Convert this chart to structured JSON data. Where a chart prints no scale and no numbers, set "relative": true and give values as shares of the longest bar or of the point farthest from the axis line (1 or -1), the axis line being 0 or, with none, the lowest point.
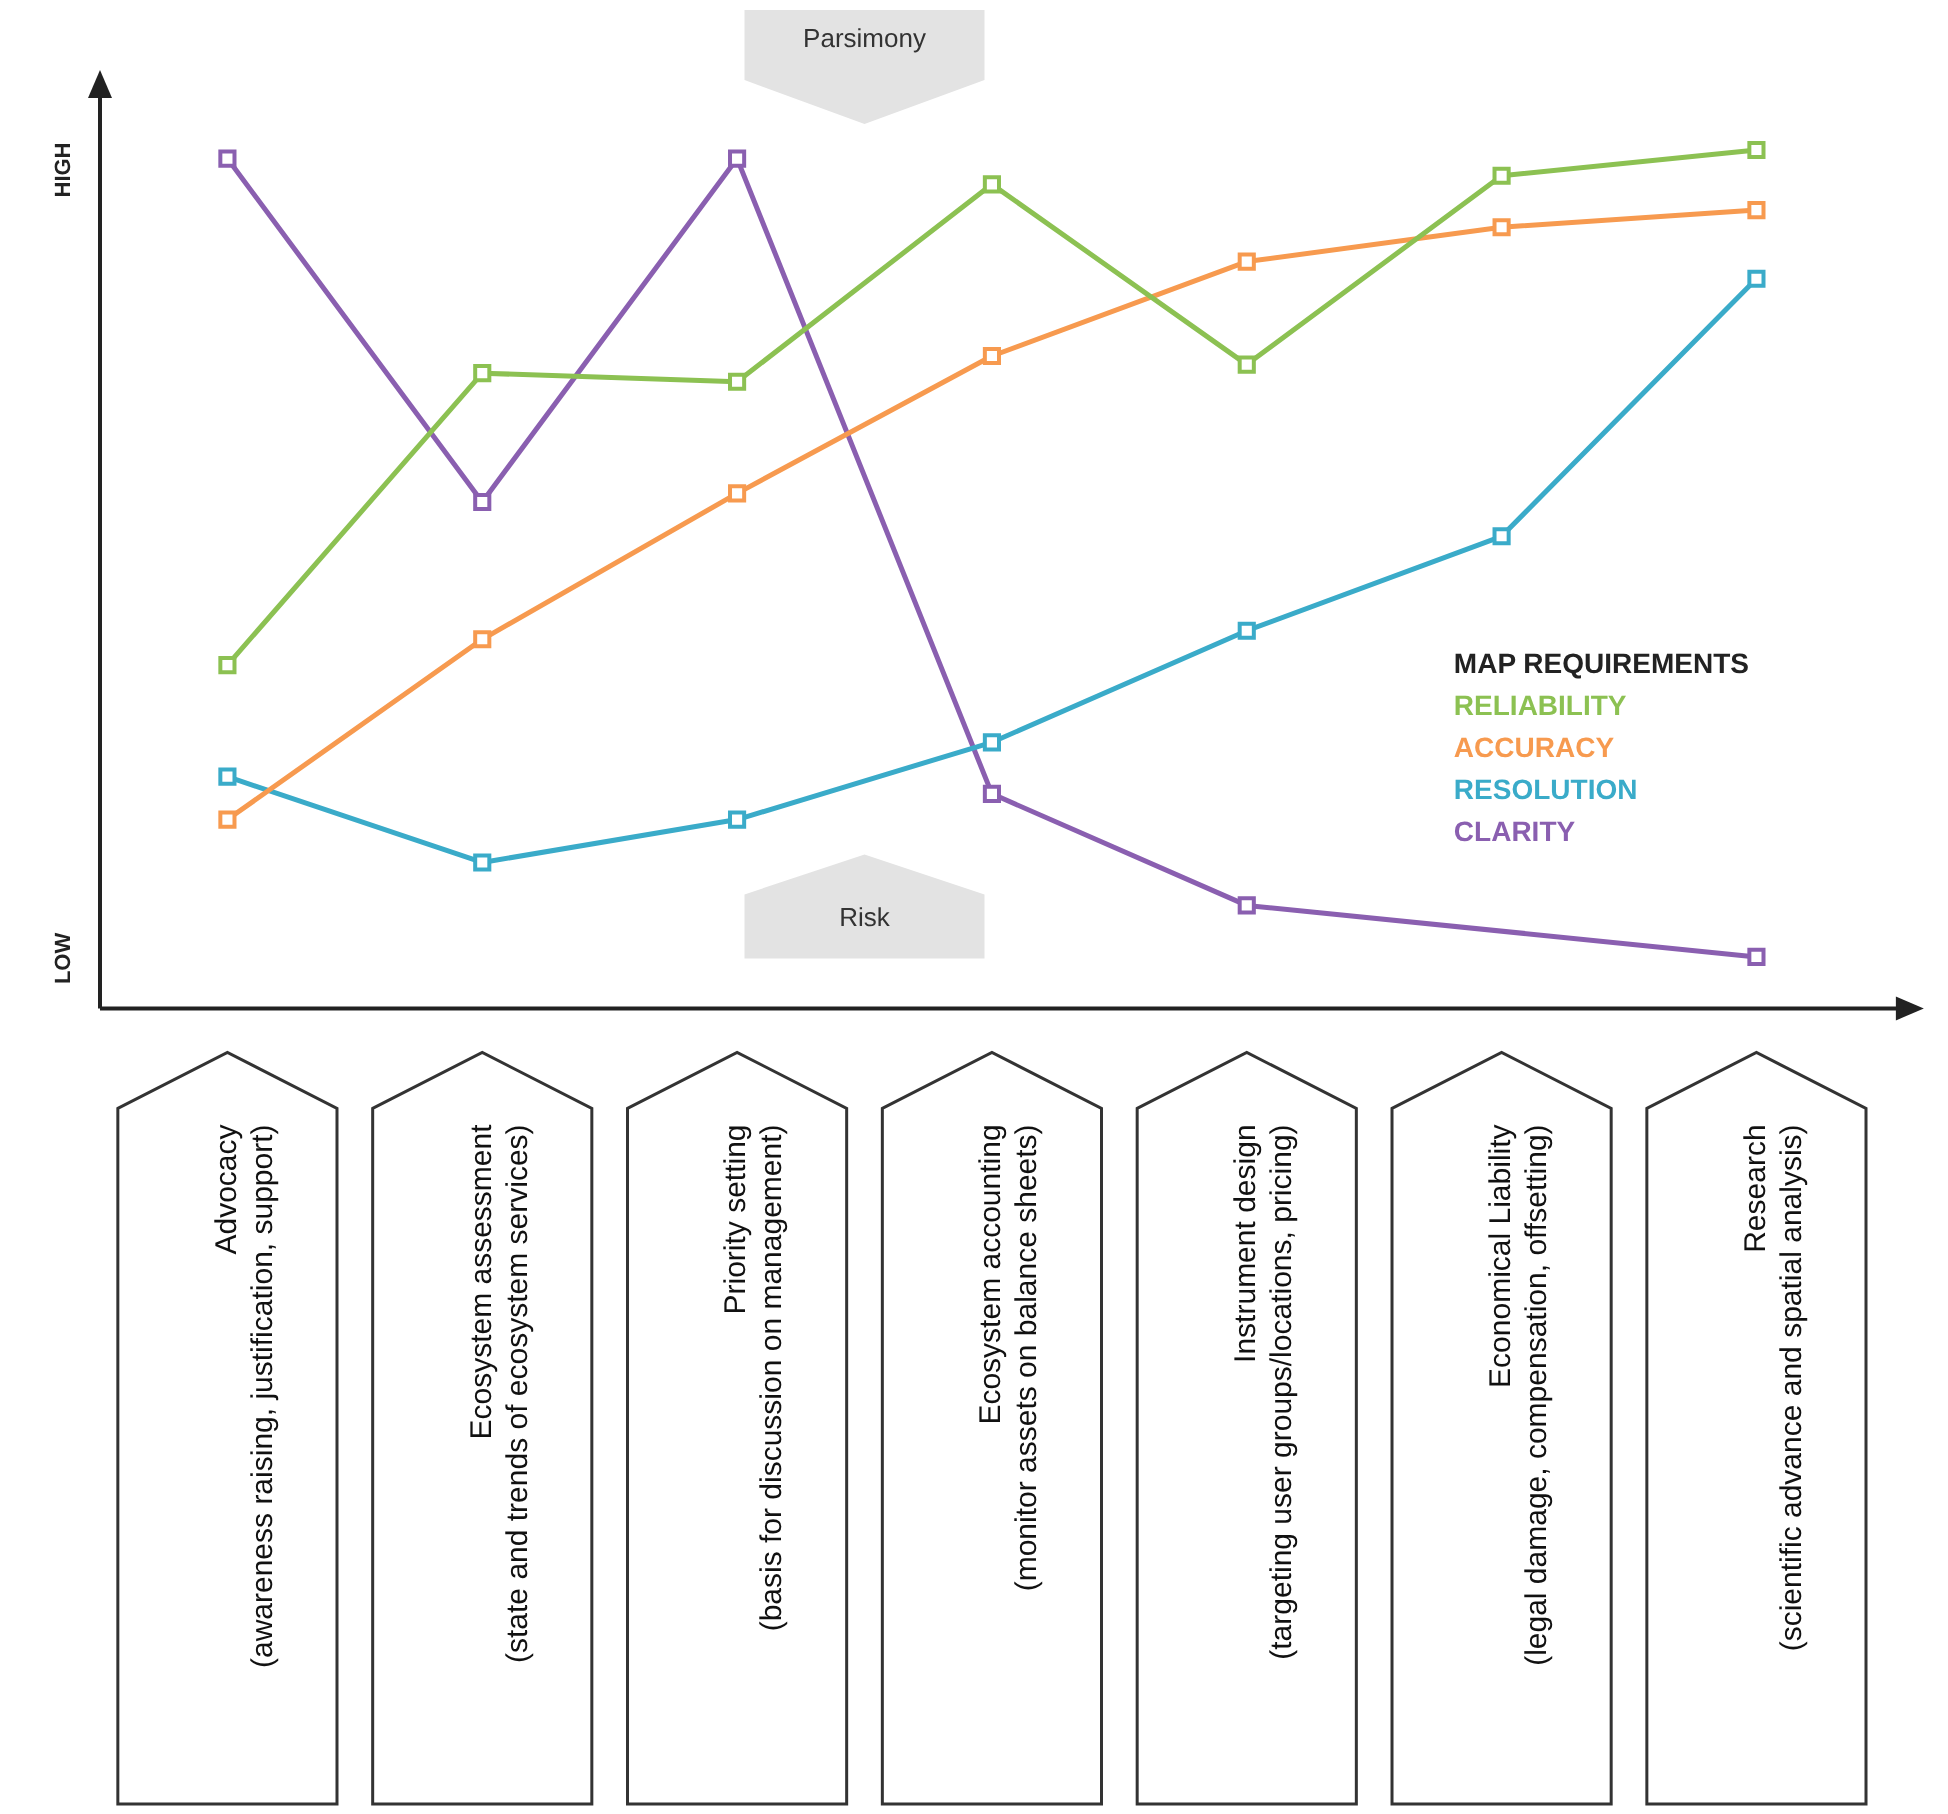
{
  "chart_data": {
    "type": "line",
    "relative": true,
    "marker": "square",
    "line_style": "solid",
    "grid": false,
    "legend": "right",
    "legend_title": "MAP REQUIREMENTS",
    "categories": [
      [
        "Advocacy",
        "(awareness raising, justification, support)"
      ],
      [
        "Ecosystem assessment",
        "(state and trends of ecosystem services)"
      ],
      [
        "Priority setting",
        "(basis for discussion on management)"
      ],
      [
        "Ecosystem accounting",
        "(monitor assets on balance sheets)"
      ],
      [
        "Instrument design",
        "(targeting user groups/locations, pricing)"
      ],
      [
        "Economical Liability",
        "(legal damage, compensation, offsetting)"
      ],
      [
        "Research",
        "(scientific advance and spatial analysis)"
      ]
    ],
    "series": [
      {
        "name": "RELIABILITY",
        "color": "#8cc152",
        "values": [
          0.4,
          0.74,
          0.73,
          0.96,
          0.75,
          0.97,
          1
        ]
      },
      {
        "name": "ACCURACY",
        "color": "#f79a4f",
        "values": [
          0.22,
          0.43,
          0.6,
          0.76,
          0.87,
          0.91,
          0.93
        ]
      },
      {
        "name": "RESOLUTION",
        "color": "#3aabc9",
        "values": [
          0.27,
          0.17,
          0.22,
          0.31,
          0.44,
          0.55,
          0.85
        ]
      },
      {
        "name": "CLARITY",
        "color": "#8a5fb0",
        "values": [
          0.99,
          0.59,
          0.99,
          0.25,
          0.12,
          null,
          0.06
        ]
      }
    ],
    "annotations": [
      "HIGH",
      "LOW",
      "Parsimony",
      "Risk"
    ]
  }
}
